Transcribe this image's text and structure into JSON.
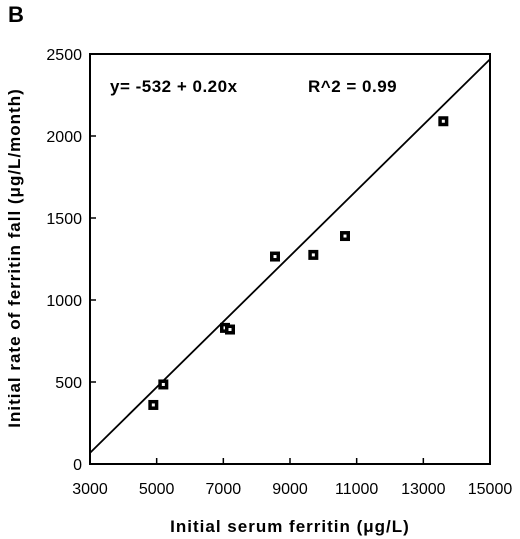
{
  "panel_label": "B",
  "equation": "y= -532 + 0.20x",
  "r_squared": "R^2 = 0.99",
  "chart_data": {
    "type": "scatter",
    "title": "",
    "xlabel": "Initial serum ferritin (μg/L)",
    "ylabel": "Initial rate of ferritin fall (μg/L/month)",
    "xlim": [
      3000,
      15000
    ],
    "ylim": [
      0,
      2500
    ],
    "xticks": [
      3000,
      5000,
      7000,
      9000,
      11000,
      13000,
      15000
    ],
    "yticks": [
      0,
      500,
      1000,
      1500,
      2000,
      2500
    ],
    "grid": false,
    "marker_color": "#000000",
    "points": [
      {
        "x": 4900,
        "y": 360
      },
      {
        "x": 5200,
        "y": 485
      },
      {
        "x": 7050,
        "y": 830
      },
      {
        "x": 7200,
        "y": 820
      },
      {
        "x": 8550,
        "y": 1265
      },
      {
        "x": 9700,
        "y": 1275
      },
      {
        "x": 10650,
        "y": 1390
      },
      {
        "x": 13600,
        "y": 2090
      }
    ],
    "fit_line": {
      "intercept": -532,
      "slope": 0.2
    }
  }
}
